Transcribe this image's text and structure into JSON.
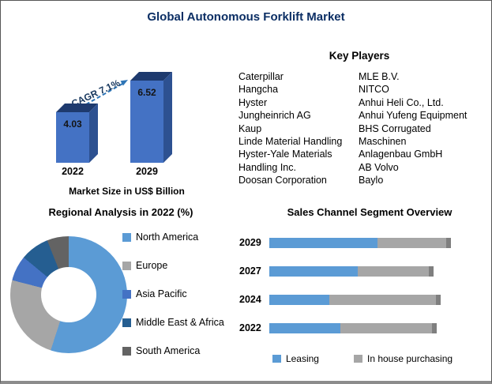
{
  "title": "Global Autonomous Forklift Market",
  "key_players": {
    "heading": "Key Players",
    "columns": [
      [
        "Caterpillar",
        "Hangcha",
        "Hyster",
        "Jungheinrich AG",
        "Kaup",
        "Linde Material Handling",
        "Hyster-Yale Materials",
        "Handling Inc.",
        "Doosan Corporation"
      ],
      [
        "MLE B.V.",
        "NITCO",
        "Anhui Heli Co., Ltd.",
        "Anhui Yufeng Equipment",
        "BHS Corrugated",
        "Maschinen",
        "Anlagenbau GmbH",
        "AB Volvo",
        "Baylo"
      ]
    ]
  },
  "chart_data": [
    {
      "id": "market_size",
      "type": "bar",
      "categories": [
        "2022",
        "2029"
      ],
      "values": [
        4.03,
        6.52
      ],
      "ylabel": "Market Size in US$ Billion",
      "annotation": "CAGR 7.1%",
      "bar_color": "#4472C4",
      "bar_side_color": "#2d5191",
      "bar_top_color": "#1e3a6e",
      "arrow_color": "#2E75B6"
    },
    {
      "id": "regional_analysis_2022",
      "type": "pie",
      "title": "Regional Analysis in 2022 (%)",
      "labels": [
        "North America",
        "Europe",
        "Asia Pacific",
        "Middle East & Africa",
        "South America"
      ],
      "values": [
        55,
        24,
        7,
        8,
        6
      ],
      "colors": [
        "#5B9BD5",
        "#A6A6A6",
        "#4472C4",
        "#255E91",
        "#636363"
      ],
      "donut": true,
      "legend_position": "right"
    },
    {
      "id": "sales_channel_segment",
      "type": "bar",
      "orientation": "horizontal-stacked",
      "title": "Sales Channel Segment Overview",
      "categories": [
        "2029",
        "2027",
        "2024",
        "2022"
      ],
      "series": [
        {
          "name": "Leasing",
          "color": "#5B9BD5",
          "values": [
            61,
            50,
            34,
            40
          ]
        },
        {
          "name": "In house purchasing",
          "color": "#A6A6A6",
          "values": [
            39,
            40,
            60,
            52
          ]
        }
      ],
      "endcap_color": "#7f7f7f",
      "legend_position": "bottom"
    }
  ]
}
